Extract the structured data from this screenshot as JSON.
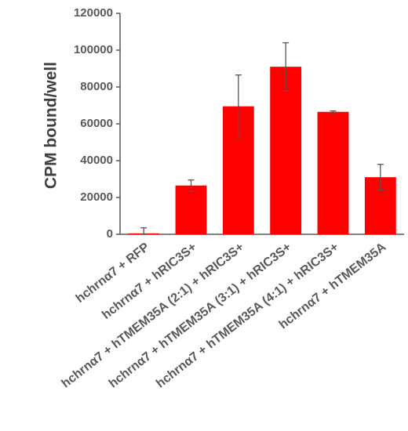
{
  "chart_data": {
    "type": "bar",
    "y_label": "CPM bound/well",
    "categories": [
      "hchrnα7 + RFP",
      "hchrnα7 + hRIC3S+",
      "hchrnα7 + hTMEM35A (2:1) + hRIC3S+",
      "hchrnα7 + hTMEM35A (3:1) + hRIC3S+",
      "hchrnα7 + hTMEM35A (4:1) + hRIC3S+",
      "hchrnα7 + hTMEM35A"
    ],
    "values": [
      500,
      26500,
      69500,
      91000,
      66500,
      31000
    ],
    "errors": [
      3000,
      3000,
      17000,
      13000,
      500,
      7000
    ],
    "color": "#ff0000",
    "error_color": "#555555",
    "ylim": [
      0,
      120000
    ],
    "yticks": [
      0,
      20000,
      40000,
      60000,
      80000,
      100000,
      120000
    ],
    "grid": false
  }
}
